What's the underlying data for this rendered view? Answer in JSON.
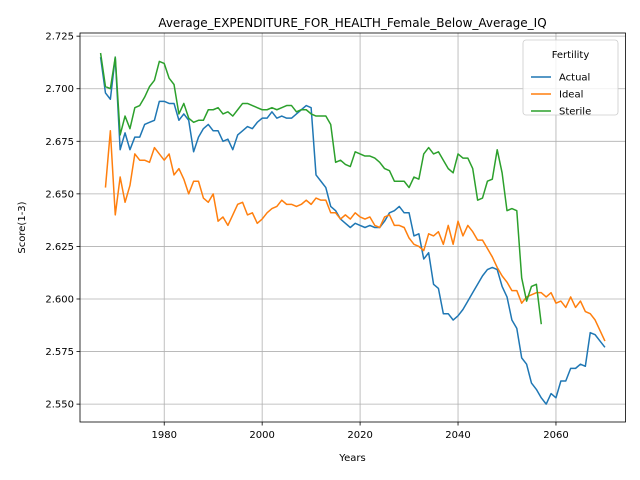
{
  "chart_data": {
    "type": "line",
    "title": "Average_EXPENDITURE_FOR_HEALTH_Female_Below_Average_IQ",
    "xlabel": "Years",
    "ylabel": "Score(1-3)",
    "xlim": [
      1962.8,
      2074.2
    ],
    "ylim": [
      2.5415,
      2.7265
    ],
    "x_ticks": [
      1980,
      2000,
      2020,
      2040,
      2060
    ],
    "y_ticks": [
      2.55,
      2.575,
      2.6,
      2.625,
      2.65,
      2.675,
      2.7,
      2.725
    ],
    "y_tick_labels": [
      "2.550",
      "2.575",
      "2.600",
      "2.625",
      "2.650",
      "2.675",
      "2.700",
      "2.725"
    ],
    "grid": true,
    "legend": {
      "title": "Fertility",
      "position": "top-right"
    },
    "series": [
      {
        "name": "Actual",
        "color": "#1f77b4",
        "x": [
          1967,
          1968,
          1969,
          1970,
          1971,
          1972,
          1973,
          1974,
          1975,
          1976,
          1977,
          1978,
          1979,
          1980,
          1981,
          1982,
          1983,
          1984,
          1985,
          1986,
          1987,
          1988,
          1989,
          1990,
          1991,
          1992,
          1993,
          1994,
          1995,
          1996,
          1997,
          1998,
          1999,
          2000,
          2001,
          2002,
          2003,
          2004,
          2005,
          2006,
          2007,
          2008,
          2009,
          2010,
          2011,
          2012,
          2013,
          2014,
          2015,
          2016,
          2017,
          2018,
          2019,
          2020,
          2021,
          2022,
          2023,
          2024,
          2025,
          2026,
          2027,
          2028,
          2029,
          2030,
          2031,
          2032,
          2033,
          2034,
          2035,
          2036,
          2037,
          2038,
          2039,
          2040,
          2041,
          2042,
          2043,
          2044,
          2045,
          2046,
          2047,
          2048,
          2049,
          2050,
          2051,
          2052,
          2053,
          2054,
          2055,
          2056,
          2057,
          2058,
          2059,
          2060,
          2061,
          2062,
          2063,
          2064,
          2065,
          2066,
          2067,
          2068,
          2069,
          2070
        ],
        "values": [
          2.715,
          2.698,
          2.695,
          2.715,
          2.671,
          2.679,
          2.671,
          2.677,
          2.677,
          2.683,
          2.684,
          2.685,
          2.694,
          2.694,
          2.693,
          2.693,
          2.685,
          2.688,
          2.685,
          2.67,
          2.677,
          2.681,
          2.683,
          2.68,
          2.68,
          2.675,
          2.676,
          2.671,
          2.678,
          2.68,
          2.682,
          2.681,
          2.684,
          2.686,
          2.686,
          2.689,
          2.686,
          2.687,
          2.686,
          2.686,
          2.688,
          2.69,
          2.692,
          2.691,
          2.659,
          2.656,
          2.653,
          2.644,
          2.642,
          2.638,
          2.636,
          2.634,
          2.636,
          2.635,
          2.634,
          2.635,
          2.634,
          2.634,
          2.637,
          2.641,
          2.642,
          2.644,
          2.641,
          2.641,
          2.63,
          2.631,
          2.619,
          2.622,
          2.607,
          2.605,
          2.593,
          2.593,
          2.59,
          2.592,
          2.595,
          2.599,
          2.603,
          2.607,
          2.611,
          2.614,
          2.615,
          2.614,
          2.606,
          2.601,
          2.59,
          2.586,
          2.572,
          2.569,
          2.56,
          2.557,
          2.553,
          2.55,
          2.555,
          2.553,
          2.561,
          2.561,
          2.567,
          2.567,
          2.569,
          2.568,
          2.584,
          2.583,
          2.58,
          2.577
        ]
      },
      {
        "name": "Ideal",
        "color": "#ff7f0e",
        "x": [
          1968,
          1969,
          1970,
          1971,
          1972,
          1973,
          1974,
          1975,
          1976,
          1977,
          1978,
          1979,
          1980,
          1981,
          1982,
          1983,
          1984,
          1985,
          1986,
          1987,
          1988,
          1989,
          1990,
          1991,
          1992,
          1993,
          1994,
          1995,
          1996,
          1997,
          1998,
          1999,
          2000,
          2001,
          2002,
          2003,
          2004,
          2005,
          2006,
          2007,
          2008,
          2009,
          2010,
          2011,
          2012,
          2013,
          2014,
          2015,
          2016,
          2017,
          2018,
          2019,
          2020,
          2021,
          2022,
          2023,
          2024,
          2025,
          2026,
          2027,
          2028,
          2029,
          2030,
          2031,
          2032,
          2033,
          2034,
          2035,
          2036,
          2037,
          2038,
          2039,
          2040,
          2041,
          2042,
          2043,
          2044,
          2045,
          2046,
          2047,
          2048,
          2049,
          2050,
          2051,
          2052,
          2053,
          2054,
          2055,
          2056,
          2057,
          2058,
          2059,
          2060,
          2061,
          2062,
          2063,
          2064,
          2065,
          2066,
          2067,
          2068,
          2069,
          2070
        ],
        "values": [
          2.653,
          2.68,
          2.64,
          2.658,
          2.646,
          2.654,
          2.669,
          2.666,
          2.666,
          2.665,
          2.672,
          2.669,
          2.666,
          2.669,
          2.659,
          2.662,
          2.657,
          2.65,
          2.656,
          2.656,
          2.648,
          2.646,
          2.65,
          2.637,
          2.639,
          2.635,
          2.64,
          2.645,
          2.646,
          2.64,
          2.641,
          2.636,
          2.638,
          2.641,
          2.643,
          2.644,
          2.647,
          2.645,
          2.645,
          2.644,
          2.645,
          2.647,
          2.645,
          2.648,
          2.647,
          2.647,
          2.641,
          2.641,
          2.638,
          2.64,
          2.638,
          2.641,
          2.639,
          2.638,
          2.639,
          2.635,
          2.634,
          2.639,
          2.64,
          2.635,
          2.635,
          2.634,
          2.629,
          2.626,
          2.625,
          2.623,
          2.631,
          2.63,
          2.632,
          2.626,
          2.635,
          2.626,
          2.637,
          2.63,
          2.635,
          2.632,
          2.628,
          2.628,
          2.624,
          2.62,
          2.615,
          2.611,
          2.608,
          2.604,
          2.604,
          2.598,
          2.601,
          2.602,
          2.603,
          2.603,
          2.601,
          2.603,
          2.598,
          2.599,
          2.596,
          2.601,
          2.596,
          2.599,
          2.594,
          2.593,
          2.59,
          2.585,
          2.58
        ]
      },
      {
        "name": "Sterile",
        "color": "#2ca02c",
        "x": [
          1967,
          1968,
          1969,
          1970,
          1971,
          1972,
          1973,
          1974,
          1975,
          1976,
          1977,
          1978,
          1979,
          1980,
          1981,
          1982,
          1983,
          1984,
          1985,
          1986,
          1987,
          1988,
          1989,
          1990,
          1991,
          1992,
          1993,
          1994,
          1995,
          1996,
          1997,
          1998,
          1999,
          2000,
          2001,
          2002,
          2003,
          2004,
          2005,
          2006,
          2007,
          2008,
          2009,
          2010,
          2011,
          2012,
          2013,
          2014,
          2015,
          2016,
          2017,
          2018,
          2019,
          2020,
          2021,
          2022,
          2023,
          2024,
          2025,
          2026,
          2027,
          2028,
          2029,
          2030,
          2031,
          2032,
          2033,
          2034,
          2035,
          2036,
          2037,
          2038,
          2039,
          2040,
          2041,
          2042,
          2043,
          2044,
          2045,
          2046,
          2047,
          2048,
          2049,
          2050,
          2051,
          2052,
          2053,
          2054,
          2055,
          2056,
          2057
        ],
        "values": [
          2.717,
          2.701,
          2.7,
          2.715,
          2.678,
          2.687,
          2.681,
          2.691,
          2.692,
          2.696,
          2.701,
          2.704,
          2.713,
          2.712,
          2.705,
          2.702,
          2.688,
          2.693,
          2.686,
          2.684,
          2.685,
          2.685,
          2.69,
          2.69,
          2.691,
          2.688,
          2.689,
          2.687,
          2.69,
          2.693,
          2.693,
          2.692,
          2.691,
          2.69,
          2.69,
          2.691,
          2.69,
          2.691,
          2.692,
          2.692,
          2.689,
          2.69,
          2.69,
          2.688,
          2.687,
          2.687,
          2.687,
          2.683,
          2.665,
          2.666,
          2.664,
          2.663,
          2.67,
          2.669,
          2.668,
          2.668,
          2.667,
          2.665,
          2.662,
          2.661,
          2.656,
          2.656,
          2.656,
          2.653,
          2.658,
          2.657,
          2.669,
          2.672,
          2.669,
          2.67,
          2.666,
          2.662,
          2.66,
          2.669,
          2.667,
          2.667,
          2.662,
          2.647,
          2.648,
          2.656,
          2.657,
          2.671,
          2.66,
          2.642,
          2.643,
          2.642,
          2.61,
          2.599,
          2.606,
          2.607,
          2.588
        ]
      }
    ]
  }
}
